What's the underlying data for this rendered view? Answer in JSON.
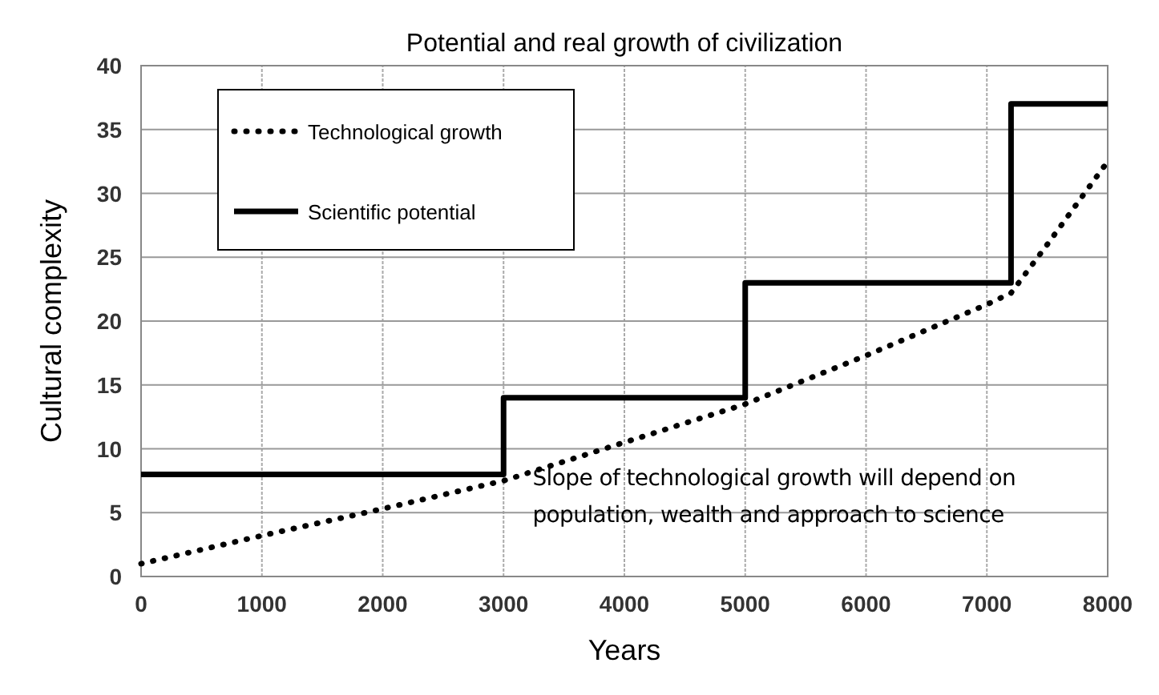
{
  "chart_data": {
    "type": "line",
    "title": "Potential and real growth of civilization",
    "xlabel": "Years",
    "ylabel": "Cultural complexity",
    "xlim": [
      0,
      8000
    ],
    "xticks": [
      0,
      1000,
      2000,
      3000,
      4000,
      5000,
      6000,
      7000,
      8000
    ],
    "ylim": [
      0,
      40
    ],
    "yticks": [
      0,
      5,
      10,
      15,
      20,
      25,
      30,
      35,
      40
    ],
    "grid": true,
    "legend": "top left",
    "series": [
      {
        "name": "Technological growth",
        "color": "#000000",
        "line_style": "dotted",
        "x": [
          0,
          1000,
          2000,
          3000,
          4000,
          5000,
          6000,
          7000,
          7200,
          7500,
          8000
        ],
        "values": [
          1,
          3.2,
          5.3,
          7.5,
          10.5,
          13.5,
          17.3,
          21.3,
          22.2,
          26,
          32.5
        ]
      },
      {
        "name": "Scientific potential",
        "type": "step",
        "color": "#000000",
        "line_style": "solid",
        "x": [
          0,
          3000,
          5000,
          7200,
          8000
        ],
        "values": [
          8,
          14,
          23,
          37,
          37
        ]
      }
    ],
    "annotations": [
      "Slope of technological growth will depend on population, wealth and approach to science"
    ]
  }
}
